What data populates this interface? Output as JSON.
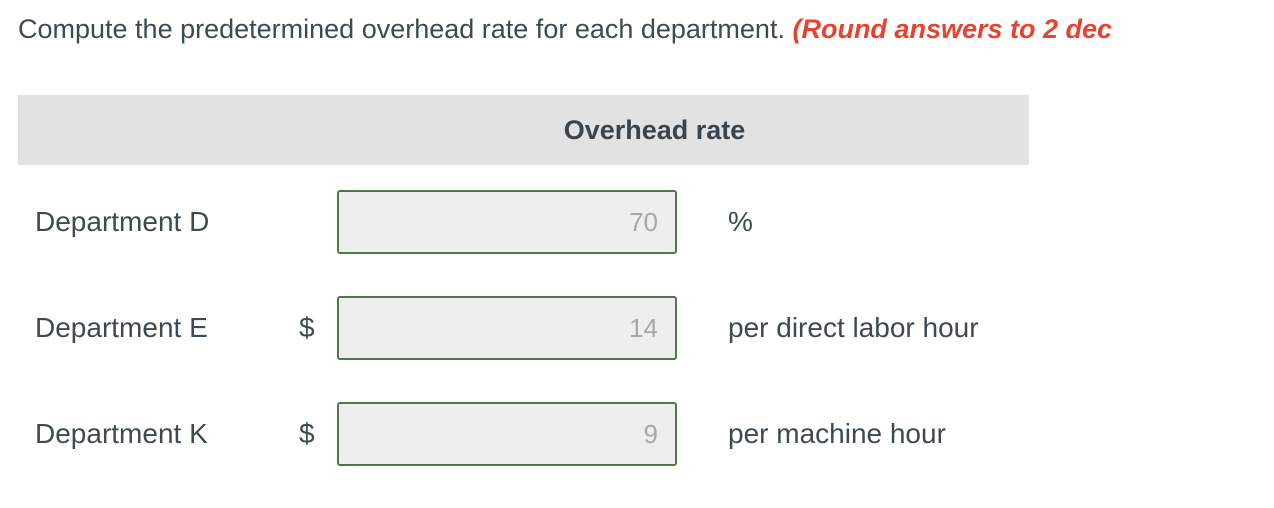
{
  "prompt": {
    "text": "Compute the predetermined overhead rate for each department. ",
    "note": "(Round answers to 2 dec"
  },
  "table": {
    "header": "Overhead rate",
    "rows": [
      {
        "label": "Department D",
        "prefix": "",
        "value": "70",
        "unit": "%"
      },
      {
        "label": "Department E",
        "prefix": "$",
        "value": "14",
        "unit": "per direct labor hour"
      },
      {
        "label": "Department K",
        "prefix": "$",
        "value": "9",
        "unit": "per machine hour"
      }
    ]
  },
  "colors": {
    "text_dark": "#3d4a53",
    "note_red": "#e8432f",
    "header_bg": "#e2e2e2",
    "input_bg": "#eeeeee",
    "input_border_green": "#4d7b45",
    "input_value_gray": "#a8a8a8"
  }
}
